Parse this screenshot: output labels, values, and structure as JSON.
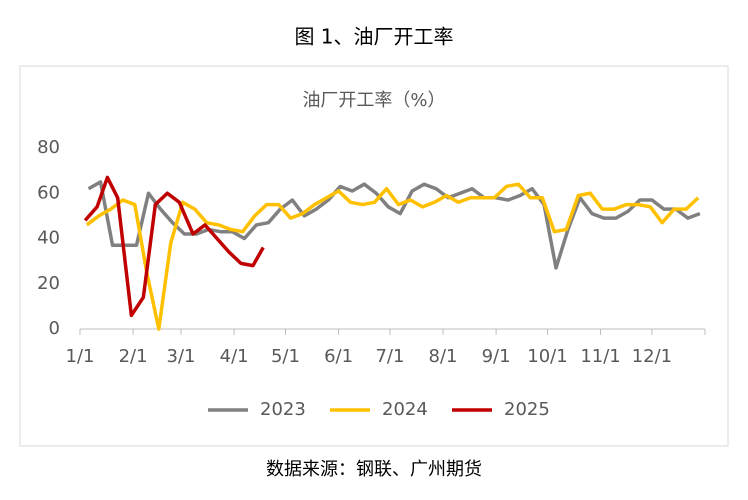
{
  "page_title": "图 1、油厂开工率",
  "source": "数据来源：钢联、广州期货",
  "chart_data": {
    "type": "line",
    "title": "油厂开工率（%）",
    "xlim": [
      0,
      365
    ],
    "xticks": [
      {
        "value": 0,
        "label": "1/1"
      },
      {
        "value": 31,
        "label": "2/1"
      },
      {
        "value": 59,
        "label": "3/1"
      },
      {
        "value": 90,
        "label": "4/1"
      },
      {
        "value": 120,
        "label": "5/1"
      },
      {
        "value": 151,
        "label": "6/1"
      },
      {
        "value": 181,
        "label": "7/1"
      },
      {
        "value": 212,
        "label": "8/1"
      },
      {
        "value": 243,
        "label": "9/1"
      },
      {
        "value": 273,
        "label": "10/1"
      },
      {
        "value": 304,
        "label": "11/1"
      },
      {
        "value": 334,
        "label": "12/1"
      }
    ],
    "ylim": [
      0,
      80
    ],
    "yticks": [
      0,
      20,
      40,
      60,
      80
    ],
    "grid": false,
    "legend": "bottom",
    "series": [
      {
        "name": "2023",
        "color": "#808080",
        "x": [
          5,
          12,
          19,
          26,
          33,
          40,
          47,
          54,
          61,
          68,
          75,
          82,
          89,
          96,
          103,
          110,
          117,
          124,
          131,
          138,
          145,
          152,
          159,
          166,
          173,
          180,
          187,
          194,
          201,
          208,
          215,
          222,
          229,
          236,
          243,
          250,
          257,
          264,
          271,
          278,
          285,
          292,
          299,
          306,
          313,
          320,
          327,
          334,
          341,
          348,
          355,
          362
        ],
        "values": [
          62,
          65,
          37,
          37,
          37,
          60,
          53,
          47,
          42,
          42,
          44,
          43,
          43,
          40,
          46,
          47,
          53,
          57,
          50,
          53,
          57,
          63,
          61,
          64,
          60,
          54,
          51,
          61,
          64,
          62,
          58,
          60,
          62,
          58,
          58,
          57,
          59,
          62,
          55,
          27,
          44,
          58,
          51,
          49,
          49,
          52,
          57,
          57,
          53,
          53,
          49,
          51
        ]
      },
      {
        "name": "2024",
        "color": "#ffc000",
        "x": [
          4,
          11,
          18,
          25,
          32,
          39,
          46,
          53,
          60,
          67,
          74,
          81,
          88,
          95,
          102,
          109,
          116,
          123,
          130,
          137,
          144,
          151,
          158,
          165,
          172,
          179,
          186,
          193,
          200,
          207,
          214,
          221,
          228,
          235,
          242,
          249,
          256,
          263,
          270,
          277,
          284,
          291,
          298,
          305,
          312,
          319,
          326,
          333,
          340,
          347,
          354,
          361
        ],
        "values": [
          46,
          50,
          53,
          57,
          55,
          25,
          0,
          38,
          56,
          53,
          47,
          46,
          44,
          43,
          50,
          55,
          55,
          49,
          51,
          55,
          58,
          61,
          56,
          55,
          56,
          62,
          55,
          57,
          54,
          56,
          59,
          56,
          58,
          58,
          58,
          63,
          64,
          58,
          58,
          43,
          44,
          59,
          60,
          53,
          53,
          55,
          55,
          54,
          47,
          53,
          53,
          58
        ]
      },
      {
        "name": "2025",
        "color": "#c00000",
        "x": [
          3,
          10,
          16,
          22,
          30,
          37,
          44,
          51,
          58,
          66,
          73,
          80,
          87,
          94,
          101,
          107
        ],
        "values": [
          48,
          54,
          67,
          58,
          6,
          14,
          55,
          60,
          56,
          42,
          46,
          40,
          34,
          29,
          28,
          36
        ]
      }
    ]
  }
}
